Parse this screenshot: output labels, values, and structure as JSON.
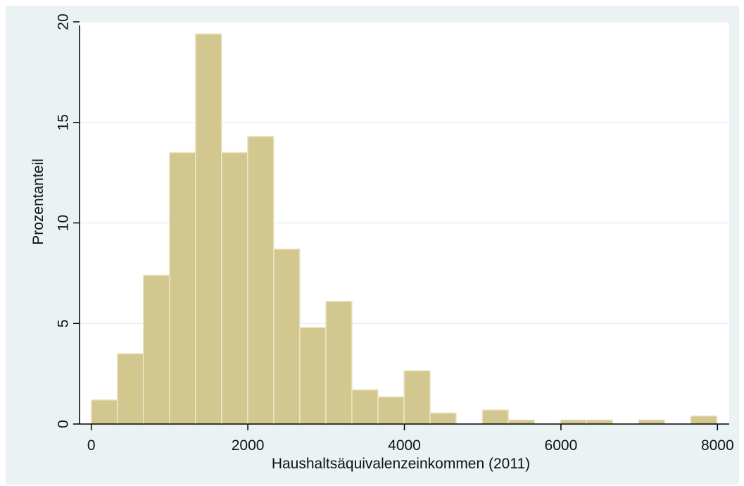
{
  "chart_data": {
    "type": "bar",
    "subtype": "histogram",
    "title": "",
    "xlabel": "Haushaltsäquivalenzeinkommen (2011)",
    "ylabel": "Prozentanteil",
    "xlim": [
      -150,
      8150
    ],
    "ylim": [
      0,
      20
    ],
    "xticks": [
      0,
      2000,
      4000,
      6000,
      8000
    ],
    "yticks": [
      0,
      5,
      10,
      15,
      20
    ],
    "grid": true,
    "bin_width": 333,
    "bins": [
      {
        "x0": 0,
        "x1": 333,
        "value": 1.2
      },
      {
        "x0": 333,
        "x1": 666,
        "value": 3.5
      },
      {
        "x0": 666,
        "x1": 999,
        "value": 7.4
      },
      {
        "x0": 999,
        "x1": 1332,
        "value": 13.5
      },
      {
        "x0": 1332,
        "x1": 1665,
        "value": 19.4
      },
      {
        "x0": 1665,
        "x1": 1998,
        "value": 13.5
      },
      {
        "x0": 1998,
        "x1": 2331,
        "value": 14.3
      },
      {
        "x0": 2331,
        "x1": 2664,
        "value": 8.7
      },
      {
        "x0": 2664,
        "x1": 2997,
        "value": 4.8
      },
      {
        "x0": 2997,
        "x1": 3330,
        "value": 6.1
      },
      {
        "x0": 3330,
        "x1": 3663,
        "value": 1.7
      },
      {
        "x0": 3663,
        "x1": 3996,
        "value": 1.35
      },
      {
        "x0": 3996,
        "x1": 4329,
        "value": 2.65
      },
      {
        "x0": 4329,
        "x1": 4662,
        "value": 0.55
      },
      {
        "x0": 4995,
        "x1": 5328,
        "value": 0.7
      },
      {
        "x0": 5328,
        "x1": 5661,
        "value": 0.2
      },
      {
        "x0": 5994,
        "x1": 6327,
        "value": 0.2
      },
      {
        "x0": 6327,
        "x1": 6660,
        "value": 0.2
      },
      {
        "x0": 6993,
        "x1": 7326,
        "value": 0.2
      },
      {
        "x0": 7659,
        "x1": 7992,
        "value": 0.4
      }
    ]
  },
  "colors": {
    "background": "#eaf2f3",
    "plot_background": "#ffffff",
    "bar_fill": "#d2c78f",
    "bar_edge": "#ece6c7",
    "grid": "#e8eff1",
    "axis": "#000000"
  }
}
